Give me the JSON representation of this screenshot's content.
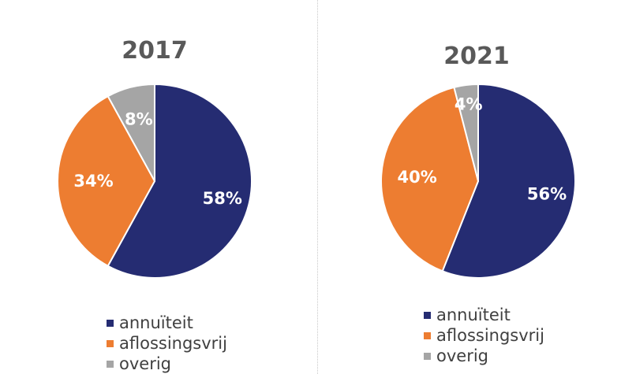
{
  "colors": {
    "annuiteit": "#252C72",
    "aflossingsvrij": "#ED7D31",
    "overig": "#A5A5A5"
  },
  "chart_data": [
    {
      "type": "pie",
      "title": "2017",
      "categories": [
        "annuïteit",
        "aflossingsvrij",
        "overig"
      ],
      "values": [
        58,
        34,
        8
      ],
      "labels": [
        "58%",
        "34%",
        "8%"
      ],
      "legend_position": "bottom"
    },
    {
      "type": "pie",
      "title": "2021",
      "categories": [
        "annuïteit",
        "aflossingsvrij",
        "overig"
      ],
      "values": [
        56,
        40,
        4
      ],
      "labels": [
        "56%",
        "40%",
        "4%"
      ],
      "legend_position": "bottom"
    }
  ]
}
